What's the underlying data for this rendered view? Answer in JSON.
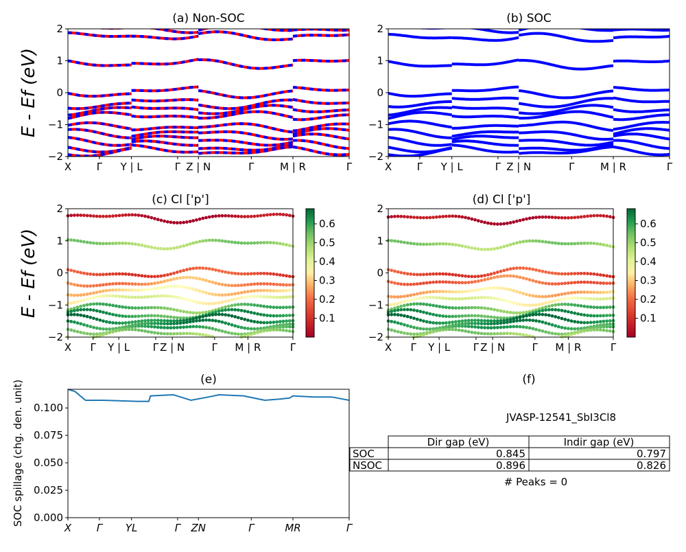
{
  "chart_data": [
    {
      "id": "a",
      "type": "line",
      "title": "(a) Non-SOC",
      "ylabel": "E - Ef (eV)",
      "ylim": [
        -2,
        2
      ],
      "yticks": [
        "2",
        "1",
        "0",
        "−1",
        "−2"
      ],
      "xticks": [
        "X",
        "Γ",
        "Y | L",
        "Γ",
        "Z | N",
        "Γ",
        "M | R",
        "Γ"
      ],
      "colors": [
        "#ff0000",
        "#0000ff"
      ],
      "bands_eV_approx": [
        1.98,
        1.75,
        0.9,
        0.0,
        -0.35,
        -0.55,
        -0.75,
        -1.1,
        -1.3,
        -1.5,
        -1.7,
        -1.85
      ]
    },
    {
      "id": "b",
      "type": "line",
      "title": "(b) SOC",
      "ylim": [
        -2,
        2
      ],
      "yticks": [
        "2",
        "1",
        "0",
        "−1",
        "−2"
      ],
      "xticks": [
        "X",
        "Γ",
        "Y | L",
        "Γ",
        "Z | N",
        "Γ",
        "M | R",
        "Γ"
      ],
      "colors": [
        "#0000ff"
      ],
      "bands_eV_approx": [
        1.98,
        1.7,
        0.88,
        0.0,
        -0.3,
        -0.55,
        -0.75,
        -1.05,
        -1.3,
        -1.5,
        -1.7,
        -1.85
      ]
    },
    {
      "id": "c",
      "type": "scatter",
      "title": "(c)  Cl ['p']",
      "ylabel": "E - Ef (eV)",
      "ylim": [
        -2,
        2
      ],
      "yticks": [
        "2",
        "1",
        "0",
        "−1",
        "−2"
      ],
      "xticks": [
        "X",
        "Γ",
        "Y | L",
        "Γ",
        "Z | N",
        "Γ",
        "M | R",
        "Γ"
      ],
      "colorbar_ticks": [
        "0.6",
        "0.5",
        "0.4",
        "0.3",
        "0.2",
        "0.1"
      ],
      "colorbar_range": [
        0.0,
        0.68
      ],
      "bands": [
        {
          "e": 1.72,
          "w": 0.02
        },
        {
          "e": 0.9,
          "w": 0.5
        },
        {
          "e": 0.0,
          "w": 0.15
        },
        {
          "e": -0.3,
          "w": 0.25
        },
        {
          "e": -0.55,
          "w": 0.32
        },
        {
          "e": -0.8,
          "w": 0.38
        },
        {
          "e": -1.1,
          "w": 0.55
        },
        {
          "e": -1.3,
          "w": 0.6
        },
        {
          "e": -1.45,
          "w": 0.65
        },
        {
          "e": -1.6,
          "w": 0.62
        },
        {
          "e": -1.75,
          "w": 0.58
        },
        {
          "e": -1.9,
          "w": 0.5
        }
      ]
    },
    {
      "id": "d",
      "type": "scatter",
      "title": "(d) Cl ['p']",
      "ylim": [
        -2,
        2
      ],
      "yticks": [
        "2",
        "1",
        "0",
        "−1",
        "−2"
      ],
      "xticks": [
        "X",
        "Γ",
        "Y | L",
        "Γ",
        "Z | N",
        "Γ",
        "M | R",
        "Γ"
      ],
      "colorbar_ticks": [
        "0.6",
        "0.5",
        "0.4",
        "0.3",
        "0.2",
        "0.1"
      ],
      "colorbar_range": [
        0.0,
        0.68
      ],
      "bands": [
        {
          "e": 1.68,
          "w": 0.02
        },
        {
          "e": 0.88,
          "w": 0.5
        },
        {
          "e": 0.0,
          "w": 0.15
        },
        {
          "e": -0.25,
          "w": 0.2
        },
        {
          "e": -0.6,
          "w": 0.3
        },
        {
          "e": -0.85,
          "w": 0.38
        },
        {
          "e": -1.1,
          "w": 0.55
        },
        {
          "e": -1.3,
          "w": 0.6
        },
        {
          "e": -1.45,
          "w": 0.65
        },
        {
          "e": -1.6,
          "w": 0.62
        },
        {
          "e": -1.75,
          "w": 0.58
        },
        {
          "e": -1.9,
          "w": 0.5
        }
      ]
    },
    {
      "id": "e",
      "type": "line",
      "title": "(e)",
      "ylabel": "SOC spillage (chg. den. unit)",
      "ylim": [
        0.0,
        0.117
      ],
      "yticks": [
        "0.100",
        "0.075",
        "0.050",
        "0.025",
        "0.000"
      ],
      "ytick_values": [
        0.1,
        0.075,
        0.05,
        0.025,
        0.0
      ],
      "xticks": [
        "X",
        "Γ",
        "YL",
        "Γ",
        "ZN",
        "Γ",
        "MR",
        "Γ"
      ],
      "x": [
        0,
        0.2,
        0.5,
        1.0,
        2.0,
        2.3,
        2.35,
        3.0,
        3.5,
        4.0,
        4.3,
        5.0,
        5.6,
        6.0,
        6.3,
        6.4,
        7.0,
        7.5,
        8.0
      ],
      "y": [
        0.117,
        0.115,
        0.107,
        0.107,
        0.106,
        0.106,
        0.111,
        0.112,
        0.107,
        0.11,
        0.112,
        0.111,
        0.107,
        0.108,
        0.109,
        0.111,
        0.11,
        0.11,
        0.107
      ],
      "color": "#1f77b4"
    }
  ],
  "panel_f": {
    "title": "(f)",
    "material": "JVASP-12541_SbI3Cl8",
    "headers": [
      "",
      "Dir gap (eV)",
      "Indir gap (eV)"
    ],
    "rows": [
      {
        "label": "SOC",
        "dir": "0.845",
        "indir": "0.797"
      },
      {
        "label": "NSOC",
        "dir": "0.896",
        "indir": "0.826"
      }
    ],
    "peaks": "# Peaks = 0"
  }
}
